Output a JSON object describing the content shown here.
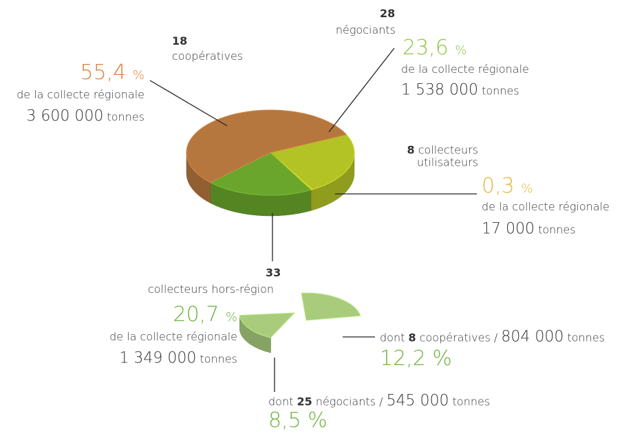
{
  "chart_data": {
    "type": "pie",
    "categories": [
      "coopératives",
      "négociants",
      "collecteurs utilisateurs",
      "collecteurs hors-région"
    ],
    "counts": [
      18,
      28,
      8,
      33
    ],
    "values": [
      55.4,
      23.6,
      0.3,
      20.7
    ],
    "value_labels": [
      "55,4",
      "23,6",
      "0,3",
      "20,7"
    ],
    "unit": "%",
    "share_text": "de la collecte régionale",
    "tonnages": [
      3600000,
      1538000,
      17000,
      1349000
    ],
    "tonnage_labels": [
      "3 600 000",
      "1 538 000",
      "17 000",
      "1 349 000"
    ],
    "tonnes_unit": "tonnes",
    "colors": [
      "#b6773f",
      "#b3c326",
      "#d4c21e",
      "#6aa62c"
    ],
    "label_colors": [
      "#e27d38",
      "#8cc540",
      "#e3b73c",
      "#6cb43f"
    ],
    "breakdown": {
      "prefix": "dont",
      "separator": "/",
      "color": "#a8cc7c",
      "label_color": "#6cb43f",
      "items": [
        {
          "count": 8,
          "label": "coopératives",
          "tonnage": 804000,
          "tonnage_label": "804 000",
          "value": 12.2,
          "value_label": "12,2 %"
        },
        {
          "count": 25,
          "label": "négociants",
          "tonnage": 545000,
          "tonnage_label": "545 000",
          "value": 8.5,
          "value_label": "8,5 %"
        }
      ]
    }
  }
}
